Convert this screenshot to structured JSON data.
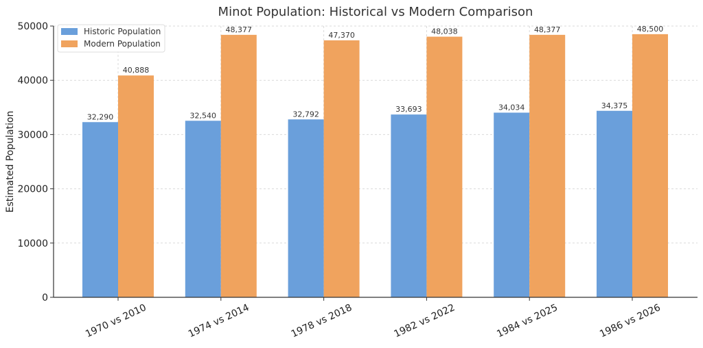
{
  "chart_data": {
    "type": "bar",
    "title": "Minot Population: Historical vs Modern Comparison",
    "xlabel": "",
    "ylabel": "Estimated Population",
    "categories": [
      "1970 vs 2010",
      "1974 vs 2014",
      "1978 vs 2018",
      "1982 vs 2022",
      "1984 vs 2025",
      "1986 vs 2026"
    ],
    "series": [
      {
        "name": "Historic Population",
        "color": "#6a9fdb",
        "values": [
          32290,
          32540,
          32792,
          33693,
          34034,
          34375
        ],
        "labels": [
          "32,290",
          "32,540",
          "32,792",
          "33,693",
          "34,034",
          "34,375"
        ]
      },
      {
        "name": "Modern Population",
        "color": "#f0a35e",
        "values": [
          40888,
          48377,
          47370,
          48038,
          48377,
          48500
        ],
        "labels": [
          "40,888",
          "48,377",
          "47,370",
          "48,038",
          "48,377",
          "48,500"
        ]
      }
    ],
    "ylim": [
      0,
      50000
    ],
    "yticks": [
      0,
      10000,
      20000,
      30000,
      40000,
      50000
    ],
    "ytick_labels": [
      "0",
      "10000",
      "20000",
      "30000",
      "40000",
      "50000"
    ],
    "grid": true,
    "legend_position": "top-left"
  }
}
